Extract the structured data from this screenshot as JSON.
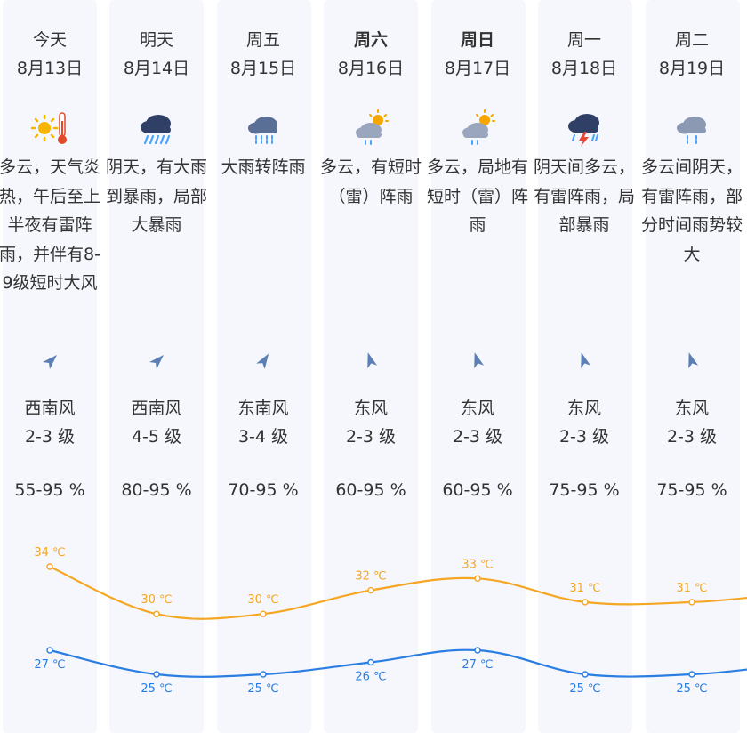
{
  "days": [
    {
      "day": "今天",
      "date": "8月13日",
      "bold": false,
      "icon": "sunny-hot-icon",
      "desc": "多云，天气炎热，午后至上半夜有雷阵雨，并伴有8-9级短时大风",
      "wind_dir": "西南风",
      "wind_level": "2-3 级",
      "humidity": "55-95 %",
      "arrow": "southwest",
      "high": "34 ℃",
      "low": "27 ℃"
    },
    {
      "day": "明天",
      "date": "8月14日",
      "bold": false,
      "icon": "heavy-rain-icon",
      "desc": "阴天，有大雨到暴雨，局部大暴雨",
      "wind_dir": "西南风",
      "wind_level": "4-5 级",
      "humidity": "80-95 %",
      "arrow": "southwest",
      "high": "30 ℃",
      "low": "25 ℃"
    },
    {
      "day": "周五",
      "date": "8月15日",
      "bold": false,
      "icon": "shower-rain-icon",
      "desc": "大雨转阵雨",
      "wind_dir": "东南风",
      "wind_level": "3-4 级",
      "humidity": "70-95 %",
      "arrow": "southeast",
      "high": "30 ℃",
      "low": "25 ℃"
    },
    {
      "day": "周六",
      "date": "8月16日",
      "bold": true,
      "icon": "partly-cloudy-rain-icon",
      "desc": "多云，有短时（雷）阵雨",
      "wind_dir": "东风",
      "wind_level": "2-3 级",
      "humidity": "60-95 %",
      "arrow": "east",
      "high": "32 ℃",
      "low": "26 ℃"
    },
    {
      "day": "周日",
      "date": "8月17日",
      "bold": true,
      "icon": "partly-cloudy-rain-icon",
      "desc": "多云，局地有短时（雷）阵雨",
      "wind_dir": "东风",
      "wind_level": "2-3 级",
      "humidity": "60-95 %",
      "arrow": "east",
      "high": "33 ℃",
      "low": "27 ℃"
    },
    {
      "day": "周一",
      "date": "8月18日",
      "bold": false,
      "icon": "thunderstorm-icon",
      "desc": "阴天间多云，有雷阵雨，局部暴雨",
      "wind_dir": "东风",
      "wind_level": "2-3 级",
      "humidity": "75-95 %",
      "arrow": "east",
      "high": "31 ℃",
      "low": "25 ℃"
    },
    {
      "day": "周二",
      "date": "8月19日",
      "bold": false,
      "icon": "cloudy-rain-icon",
      "desc": "多云间阴天，有雷阵雨，部分时间雨势较大",
      "wind_dir": "东风",
      "wind_level": "2-3 级",
      "humidity": "75-95 %",
      "arrow": "east",
      "high": "31 ℃",
      "low": "25 ℃"
    }
  ],
  "chart_data": {
    "type": "line",
    "categories": [
      "8月13日",
      "8月14日",
      "8月15日",
      "8月16日",
      "8月17日",
      "8月18日",
      "8月19日"
    ],
    "series": [
      {
        "values": [
          34,
          30,
          30,
          32,
          33,
          31,
          31
        ],
        "color": "#f5a623"
      },
      {
        "values": [
          27,
          25,
          25,
          26,
          27,
          25,
          25
        ],
        "color": "#2a7de1"
      }
    ]
  },
  "colors": {
    "high": "#f5a623",
    "low": "#2a7de1",
    "column_bg": "#f5f7fc",
    "arrow": "#5b7fb5"
  }
}
